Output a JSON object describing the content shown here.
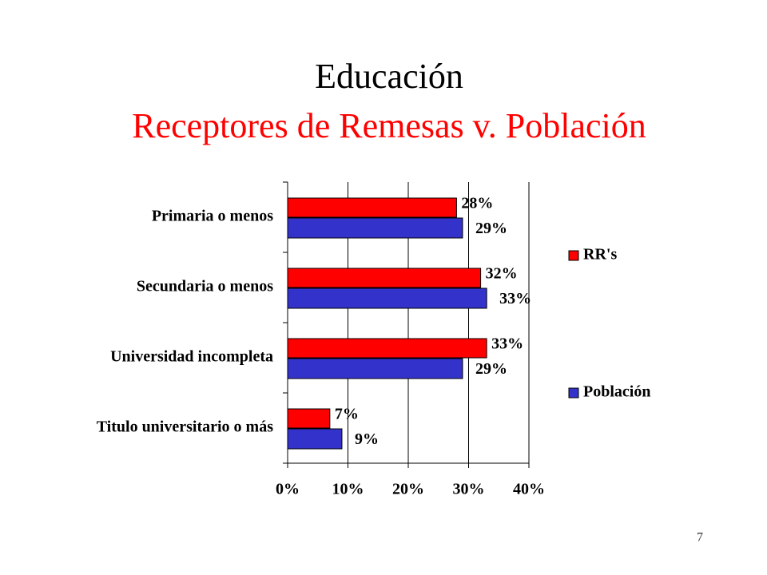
{
  "chart_data": {
    "type": "barh",
    "title": "Educación",
    "subtitle": "Receptores de Remesas v. Población",
    "categories": [
      "Primaria o menos",
      "Secundaria o menos",
      "Universidad incompleta",
      "Titulo universitario o más"
    ],
    "series": [
      {
        "name": "RR's",
        "color": "#ff0000",
        "values": [
          28,
          32,
          33,
          7
        ],
        "value_labels": [
          "28%",
          "32%",
          "33%",
          "7%"
        ]
      },
      {
        "name": "Población",
        "color": "#3333cc",
        "values": [
          29,
          33,
          29,
          9
        ],
        "value_labels": [
          "29%",
          "33%",
          "29%",
          "9%"
        ]
      }
    ],
    "xlim": [
      0,
      40
    ],
    "xticks": [
      {
        "value": 0,
        "label": "0%"
      },
      {
        "value": 10,
        "label": "10%"
      },
      {
        "value": 20,
        "label": "20%"
      },
      {
        "value": 30,
        "label": "30%"
      },
      {
        "value": 40,
        "label": "40%"
      }
    ],
    "grid": true,
    "legend": "right"
  },
  "page_number": "7"
}
